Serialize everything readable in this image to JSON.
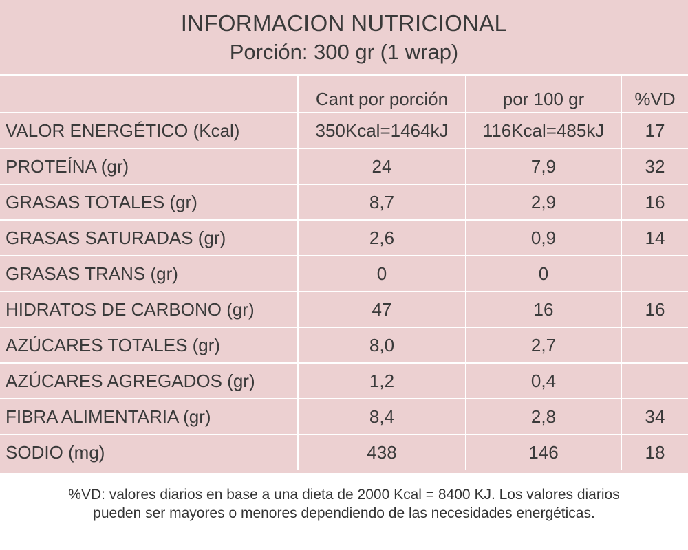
{
  "title": "INFORMACION NUTRICIONAL",
  "subtitle": "Porción: 300 gr (1 wrap)",
  "columns": [
    "",
    "Cant por porción",
    "por 100 gr",
    "%VD"
  ],
  "rows": [
    {
      "label": "VALOR ENERGÉTICO  (Kcal)",
      "per_portion": "350Kcal=1464kJ",
      "per_100g": "116Kcal=485kJ",
      "vd": "17"
    },
    {
      "label": "PROTEÍNA (gr)",
      "per_portion": "24",
      "per_100g": "7,9",
      "vd": "32"
    },
    {
      "label": "GRASAS TOTALES (gr)",
      "per_portion": "8,7",
      "per_100g": "2,9",
      "vd": "16"
    },
    {
      "label": "GRASAS SATURADAS (gr)",
      "per_portion": "2,6",
      "per_100g": "0,9",
      "vd": "14"
    },
    {
      "label": "GRASAS TRANS (gr)",
      "per_portion": "0",
      "per_100g": "0",
      "vd": ""
    },
    {
      "label": "HIDRATOS DE CARBONO (gr)",
      "per_portion": "47",
      "per_100g": "16",
      "vd": "16"
    },
    {
      "label": "AZÚCARES TOTALES (gr)",
      "per_portion": "8,0",
      "per_100g": "2,7",
      "vd": ""
    },
    {
      "label": "AZÚCARES AGREGADOS (gr)",
      "per_portion": "1,2",
      "per_100g": "0,4",
      "vd": ""
    },
    {
      "label": "FIBRA ALIMENTARIA (gr)",
      "per_portion": "8,4",
      "per_100g": "2,8",
      "vd": "34"
    },
    {
      "label": "SODIO (mg)",
      "per_portion": "438",
      "per_100g": "146",
      "vd": "18"
    }
  ],
  "footnote": {
    "line1": "%VD:  valores diarios en base a una dieta de 2000 Kcal = 8400 KJ. Los valores diarios",
    "line2": "pueden ser mayores o menores dependiendo de las necesidades energéticas."
  },
  "colors": {
    "panel_background": "#ecd0d1",
    "grid_lines": "#ffffff",
    "text": "#3a3a3a"
  }
}
